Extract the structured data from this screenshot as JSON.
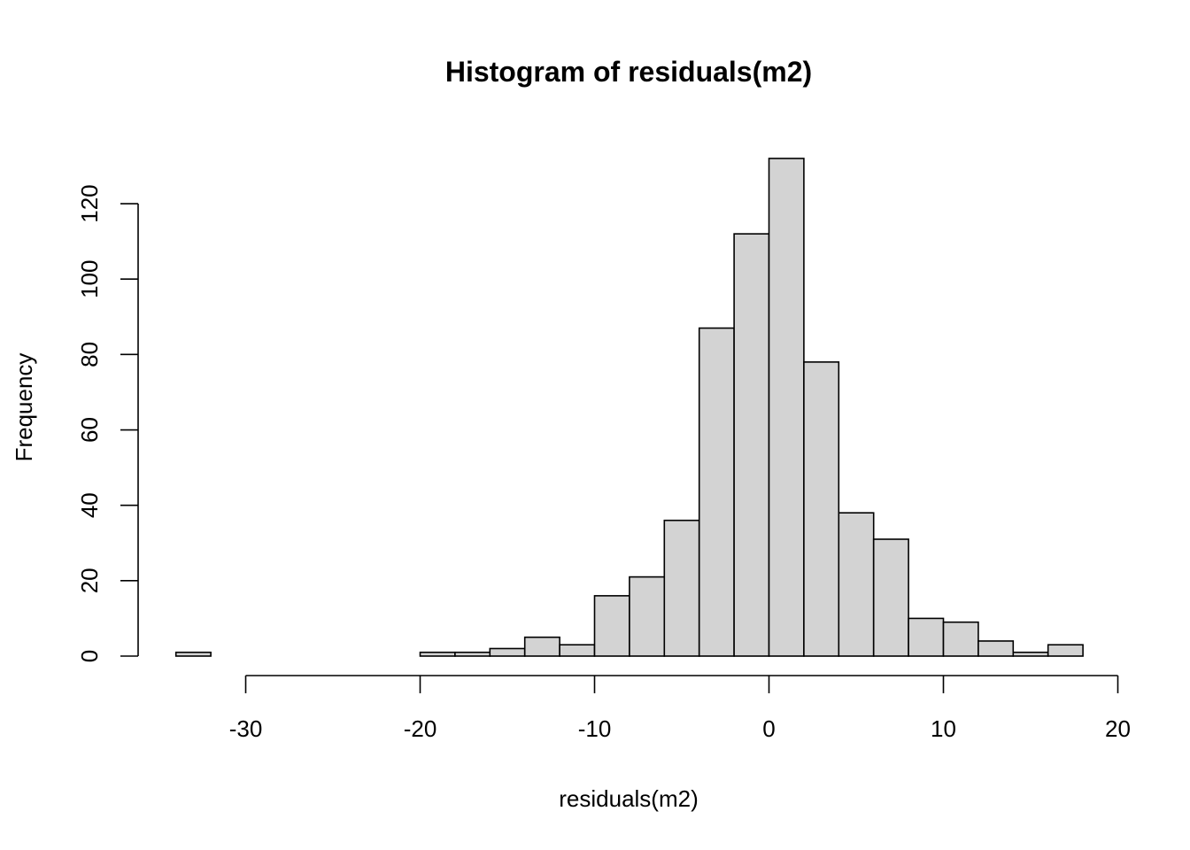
{
  "chart_data": {
    "type": "bar",
    "title": "Histogram of residuals(m2)",
    "xlabel": "residuals(m2)",
    "ylabel": "Frequency",
    "bin_edges": [
      -34,
      -32,
      -30,
      -28,
      -26,
      -24,
      -22,
      -20,
      -18,
      -16,
      -14,
      -12,
      -10,
      -8,
      -6,
      -4,
      -2,
      0,
      2,
      4,
      6,
      8,
      10,
      12,
      14,
      16,
      18
    ],
    "counts": [
      1,
      0,
      0,
      0,
      0,
      0,
      0,
      1,
      1,
      2,
      5,
      3,
      16,
      21,
      36,
      87,
      112,
      132,
      78,
      38,
      31,
      10,
      9,
      4,
      1,
      3
    ],
    "xlim": [
      -30,
      20
    ],
    "ylim": [
      0,
      120
    ],
    "xticks": [
      -30,
      -20,
      -10,
      0,
      10,
      20
    ],
    "yticks": [
      0,
      20,
      40,
      60,
      80,
      100,
      120
    ],
    "bar_fill": "#d3d3d3",
    "bar_stroke": "#000000",
    "grid": false,
    "legend": "none"
  }
}
